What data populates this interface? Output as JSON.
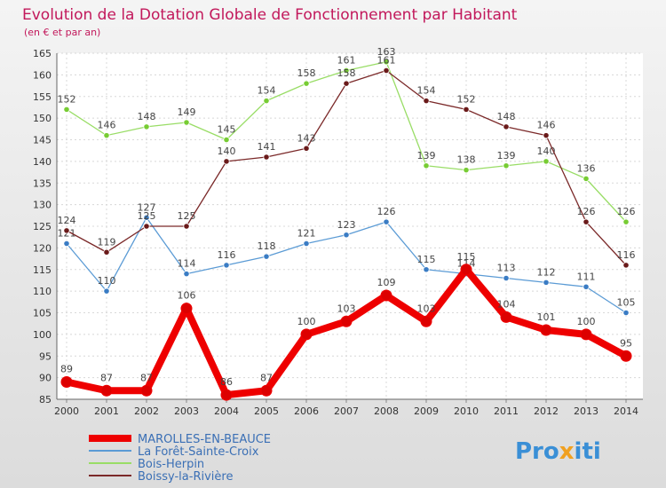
{
  "chart_data": {
    "type": "line",
    "title": "Evolution de la Dotation Globale de Fonctionnement par Habitant",
    "subtitle": "(en € et par an)",
    "x": [
      "2000",
      "2001",
      "2002",
      "2003",
      "2004",
      "2005",
      "2006",
      "2007",
      "2008",
      "2009",
      "2010",
      "2011",
      "2012",
      "2013",
      "2014"
    ],
    "ylim": [
      85,
      165
    ],
    "yticks": [
      85,
      90,
      95,
      100,
      105,
      110,
      115,
      120,
      125,
      130,
      135,
      140,
      145,
      150,
      155,
      160,
      165
    ],
    "grid": true,
    "legend_position": "bottom-left",
    "series": [
      {
        "name": "MAROLLES-EN-BEAUCE",
        "color": "#ee0000",
        "point_color": "#dd0000",
        "values": [
          89,
          87,
          87,
          106,
          86,
          87,
          100,
          103,
          109,
          103,
          115,
          104,
          101,
          100,
          95
        ]
      },
      {
        "name": "La Forêt-Sainte-Croix",
        "color": "#5b9bd5",
        "point_color": "#3a7cc4",
        "values": [
          121,
          110,
          127,
          114,
          116,
          118,
          121,
          123,
          126,
          115,
          114,
          113,
          112,
          111,
          105
        ]
      },
      {
        "name": "Bois-Herpin",
        "color": "#99dd66",
        "point_color": "#77cc33",
        "values": [
          152,
          146,
          148,
          149,
          145,
          154,
          158,
          161,
          163,
          139,
          138,
          139,
          140,
          136,
          126
        ]
      },
      {
        "name": "Boissy-la-Rivière",
        "color": "#7b2929",
        "point_color": "#6a1a1a",
        "values": [
          124,
          119,
          125,
          125,
          140,
          141,
          143,
          158,
          161,
          154,
          152,
          148,
          146,
          126,
          116
        ]
      }
    ]
  },
  "brand": {
    "prefix": "Pro",
    "x": "x",
    "suffix": "iti"
  }
}
